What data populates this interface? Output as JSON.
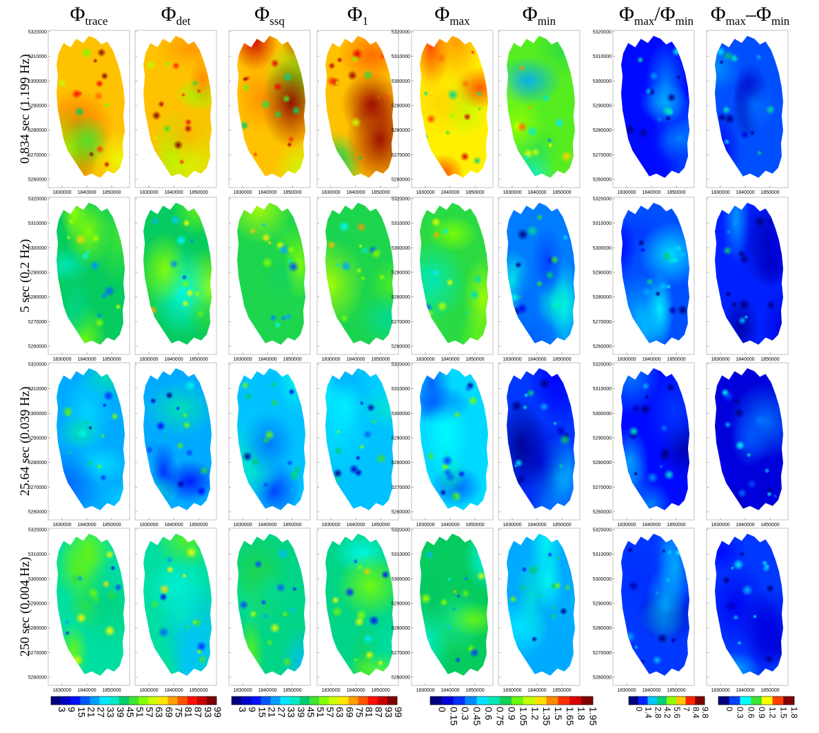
{
  "chart_data": {
    "type": "heatmap",
    "title": "",
    "columns": [
      {
        "symbol": "Φ",
        "subscript": "trace"
      },
      {
        "symbol": "Φ",
        "subscript": "det"
      },
      {
        "symbol": "Φ",
        "subscript": "ssq"
      },
      {
        "symbol": "Φ",
        "subscript": "1"
      },
      {
        "symbol": "Φ",
        "subscript": "max"
      },
      {
        "symbol": "Φ",
        "subscript": "min"
      },
      {
        "symbol": "Φ",
        "subscript": "max",
        "mid": "/Φ",
        "subscript2": "min"
      },
      {
        "symbol": "Φ",
        "subscript": "max",
        "mid": "–Φ",
        "subscript2": "min"
      }
    ],
    "rows": [
      {
        "label": "0.834 sec (1.199 Hz)"
      },
      {
        "label": "5 sec (0.2 Hz)"
      },
      {
        "label": "25.64 sec (0.039 Hz)"
      },
      {
        "label": "250 sec (0.004 Hz)"
      }
    ],
    "x_ticks": [
      "1830000",
      "1840000",
      "1850000"
    ],
    "y_ticks": [
      "5320000",
      "5310000",
      "5300000",
      "5290000",
      "5280000",
      "5270000",
      "5260000"
    ],
    "x_range": [
      1824000,
      1858000
    ],
    "y_range": [
      5255000,
      5320000
    ],
    "colorbars": [
      {
        "columns": [
          0,
          1
        ],
        "ticks": [
          "3",
          "9",
          "15",
          "21",
          "27",
          "33",
          "39",
          "45",
          "51",
          "57",
          "63",
          "69",
          "75",
          "81",
          "87",
          "93",
          "99"
        ],
        "range": [
          3,
          99
        ]
      },
      {
        "columns": [
          2,
          3
        ],
        "ticks": [
          "3",
          "9",
          "15",
          "21",
          "27",
          "33",
          "39",
          "45",
          "51",
          "57",
          "63",
          "69",
          "75",
          "81",
          "87",
          "93",
          "99"
        ],
        "range": [
          3,
          99
        ]
      },
      {
        "columns": [
          4,
          5
        ],
        "ticks": [
          "0",
          "0.15",
          "0.3",
          "0.45",
          "0.6",
          "0.75",
          "0.9",
          "1.05",
          "1.2",
          "1.35",
          "1.5",
          "1.65",
          "1.8",
          "1.95"
        ],
        "range": [
          0,
          1.95
        ]
      },
      {
        "columns": [
          6
        ],
        "ticks": [
          "0",
          "1.4",
          "2.8",
          "4.2",
          "5.6",
          "7",
          "8.4",
          "9.8"
        ],
        "range": [
          0,
          9.8
        ]
      },
      {
        "columns": [
          7
        ],
        "ticks": [
          "0",
          "0.3",
          "0.6",
          "0.9",
          "1.2",
          "1.5",
          "1.8"
        ],
        "range": [
          0,
          1.8
        ]
      }
    ],
    "base_levels": [
      [
        0.72,
        0.72,
        0.72,
        0.72,
        0.68,
        0.52,
        0.12,
        0.18
      ],
      [
        0.45,
        0.45,
        0.47,
        0.47,
        0.48,
        0.22,
        0.18,
        0.14
      ],
      [
        0.26,
        0.26,
        0.28,
        0.28,
        0.3,
        0.16,
        0.12,
        0.08
      ],
      [
        0.4,
        0.4,
        0.42,
        0.42,
        0.45,
        0.26,
        0.16,
        0.16
      ]
    ],
    "colors": {
      "jet": [
        "#00007f",
        "#0000ff",
        "#007fff",
        "#00ffff",
        "#00c864",
        "#7fff00",
        "#ffff00",
        "#ff7f00",
        "#ff0000",
        "#7f0000"
      ]
    }
  }
}
